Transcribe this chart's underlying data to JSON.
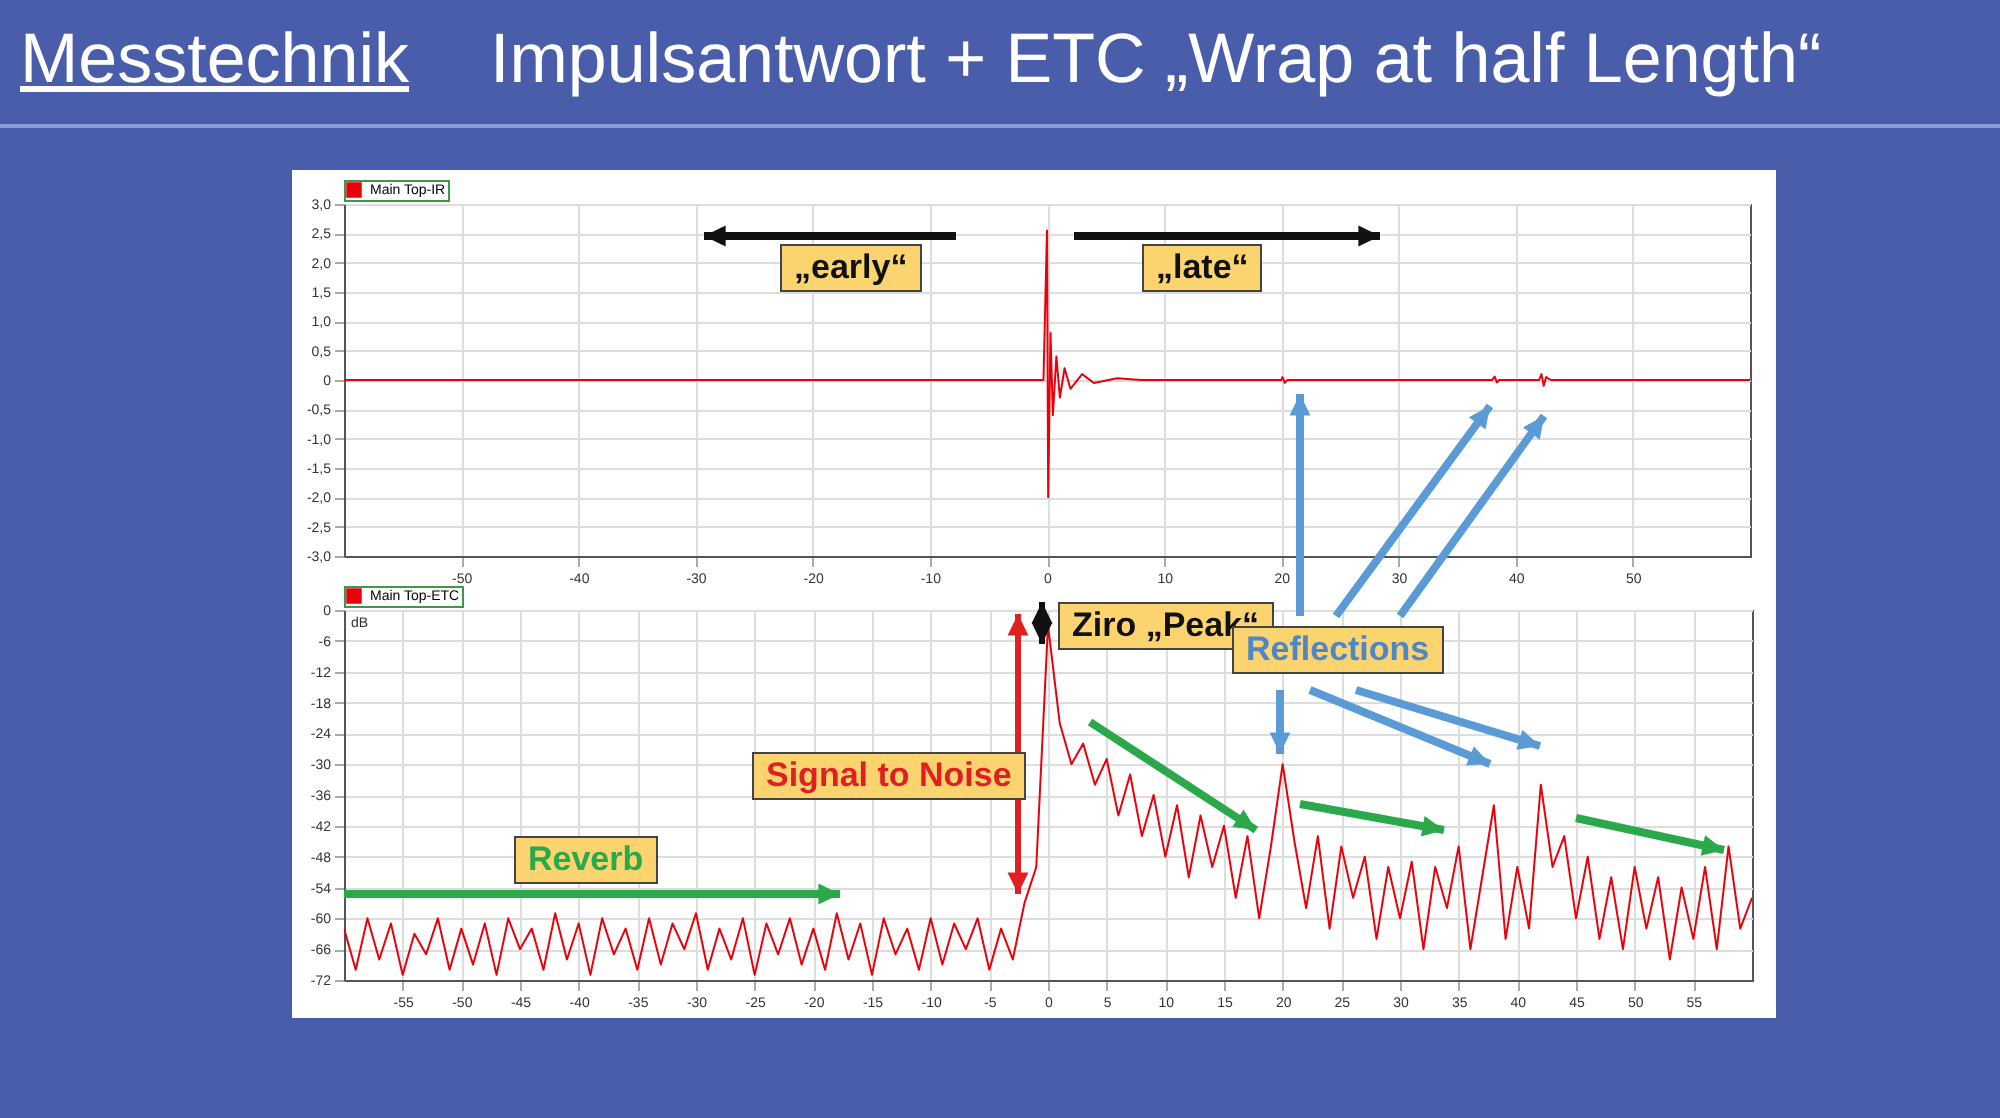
{
  "chart_data": [
    {
      "type": "line",
      "title": "Messtechnik",
      "subtitle": "Impulsantwort + ETC „Wrap at half Length“",
      "series": [
        {
          "name": "Main Top-IR",
          "color": "#e8000b",
          "x": [
            -60,
            -1,
            -0.3,
            0,
            0.1,
            0.3,
            0.5,
            0.8,
            1.1,
            1.5,
            2,
            3,
            4,
            6,
            8,
            20,
            20.1,
            20.3,
            20.5,
            38,
            38.2,
            38.4,
            38.6,
            42,
            42.2,
            42.4,
            42.6,
            43,
            60
          ],
          "values": [
            0,
            0,
            0,
            2.55,
            -2.0,
            0.8,
            -0.6,
            0.4,
            -0.3,
            0.2,
            -0.15,
            0.1,
            -0.05,
            0.03,
            0,
            0,
            0.05,
            -0.05,
            0,
            0,
            0.06,
            -0.04,
            0,
            0,
            0.1,
            -0.1,
            0.05,
            0,
            0
          ]
        }
      ],
      "xlim": [
        -60,
        60
      ],
      "xticks": [
        -50,
        -40,
        -30,
        -20,
        -10,
        0,
        10,
        20,
        30,
        40,
        50
      ],
      "ylim": [
        -3,
        3
      ],
      "yticks": [
        {
          "value": -3,
          "label": "-3,0"
        },
        {
          "value": -2.5,
          "label": "-2,5"
        },
        {
          "value": -2,
          "label": "-2,0"
        },
        {
          "value": -1.5,
          "label": "-1,5"
        },
        {
          "value": -1,
          "label": "-1,0"
        },
        {
          "value": -0.5,
          "label": "-0,5"
        },
        0,
        {
          "value": 0.5,
          "label": "0,5"
        },
        {
          "value": 1,
          "label": "1,0"
        },
        {
          "value": 1.5,
          "label": "1,5"
        },
        {
          "value": 2,
          "label": "2,0"
        },
        {
          "value": 2.5,
          "label": "2,5"
        },
        {
          "value": 3,
          "label": "3,0"
        }
      ],
      "grid": true,
      "legend": "top left",
      "annotations": [
        "„early“",
        "„late“"
      ]
    },
    {
      "type": "line",
      "ylabel": "dB",
      "series": [
        {
          "name": "Main Top-ETC",
          "color": "#e8000b",
          "x": [
            -60,
            -59,
            -58,
            -57,
            -56,
            -55,
            -54,
            -53,
            -52,
            -51,
            -50,
            -49,
            -48,
            -47,
            -46,
            -45,
            -44,
            -43,
            -42,
            -41,
            -40,
            -39,
            -38,
            -37,
            -36,
            -35,
            -34,
            -33,
            -32,
            -31,
            -30,
            -29,
            -28,
            -27,
            -26,
            -25,
            -24,
            -23,
            -22,
            -21,
            -20,
            -19,
            -18,
            -17,
            -16,
            -15,
            -14,
            -13,
            -12,
            -11,
            -10,
            -9,
            -8,
            -7,
            -6,
            -5,
            -4,
            -3,
            -2,
            -1,
            0,
            1,
            2,
            3,
            4,
            5,
            6,
            7,
            8,
            9,
            10,
            11,
            12,
            13,
            14,
            15,
            16,
            17,
            18,
            19,
            20,
            21,
            22,
            23,
            24,
            25,
            26,
            27,
            28,
            29,
            30,
            31,
            32,
            33,
            34,
            35,
            36,
            37,
            38,
            39,
            40,
            41,
            42,
            43,
            44,
            45,
            46,
            47,
            48,
            49,
            50,
            51,
            52,
            53,
            54,
            55,
            56,
            57,
            58,
            59,
            60
          ],
          "values": [
            -62,
            -70,
            -60,
            -68,
            -61,
            -71,
            -63,
            -67,
            -60,
            -70,
            -62,
            -69,
            -61,
            -71,
            -60,
            -66,
            -62,
            -70,
            -59,
            -68,
            -61,
            -71,
            -60,
            -67,
            -62,
            -70,
            -60,
            -69,
            -61,
            -66,
            -59,
            -70,
            -62,
            -68,
            -60,
            -71,
            -61,
            -67,
            -60,
            -69,
            -62,
            -70,
            -59,
            -68,
            -61,
            -71,
            -60,
            -67,
            -62,
            -70,
            -60,
            -69,
            -61,
            -66,
            -60,
            -70,
            -62,
            -68,
            -57,
            -50,
            -3,
            -22,
            -30,
            -26,
            -34,
            -29,
            -40,
            -32,
            -44,
            -36,
            -48,
            -38,
            -52,
            -40,
            -50,
            -42,
            -56,
            -44,
            -60,
            -46,
            -30,
            -45,
            -58,
            -44,
            -62,
            -46,
            -56,
            -48,
            -64,
            -50,
            -60,
            -49,
            -66,
            -50,
            -58,
            -46,
            -66,
            -52,
            -38,
            -64,
            -50,
            -62,
            -34,
            -50,
            -44,
            -60,
            -48,
            -64,
            -52,
            -66,
            -50,
            -62,
            -52,
            -68,
            -54,
            -64,
            -50,
            -66,
            -46,
            -62,
            -56
          ]
        }
      ],
      "xlim": [
        -60,
        60
      ],
      "xticks": [
        -55,
        -50,
        -45,
        -40,
        -35,
        -30,
        -25,
        -20,
        -15,
        -10,
        -5,
        0,
        5,
        10,
        15,
        20,
        25,
        30,
        35,
        40,
        45,
        50,
        55
      ],
      "ylim": [
        -72,
        0
      ],
      "yticks": [
        -72,
        -66,
        -60,
        -54,
        -48,
        -42,
        -36,
        -30,
        -24,
        -18,
        -12,
        -6,
        0
      ],
      "grid": true,
      "legend": "top left",
      "annotations": [
        "Ziro „Peak“",
        "Reflections",
        "Signal to Noise",
        "Reverb"
      ]
    }
  ]
}
